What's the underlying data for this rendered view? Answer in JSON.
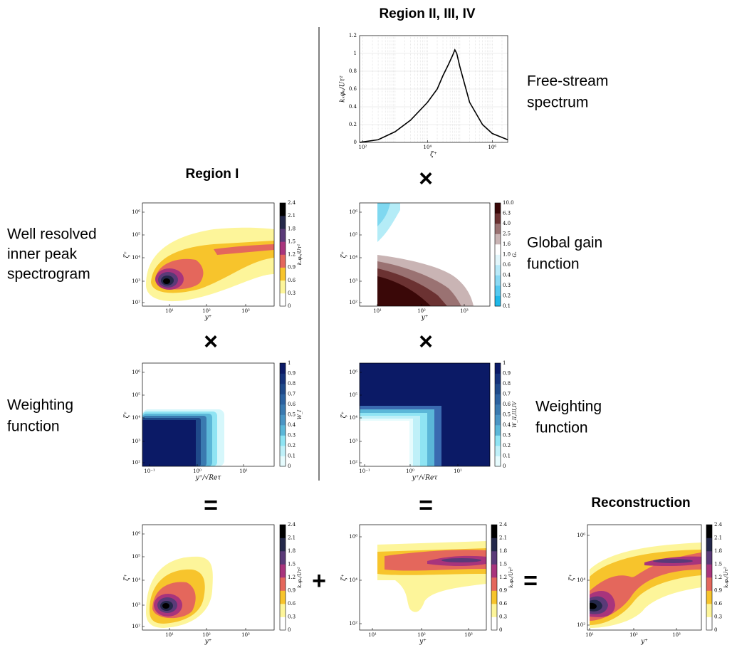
{
  "headings": {
    "region_234": "Region II, III, IV",
    "region_1": "Region I",
    "reconstruction": "Reconstruction"
  },
  "side_labels": {
    "spectrogram": [
      "Well resolved",
      "inner peak",
      "spectrogram"
    ],
    "free_stream": [
      "Free-stream",
      "spectrum"
    ],
    "gain": [
      "Global gain",
      "function"
    ],
    "weighting_1": [
      "Weighting",
      "function"
    ],
    "weighting_2": [
      "Weighting",
      "function"
    ]
  },
  "operators": [
    "×",
    "×",
    "×",
    "=",
    "=",
    "+",
    "="
  ],
  "spectrum": {
    "y_label": "kₓφᵤ/Uτ²",
    "x_label": "ζ⁺",
    "xlim": [
      80,
      3000000
    ],
    "ylim": [
      0,
      1.2
    ],
    "xticks": [
      {
        "value": 100,
        "label": "10²"
      },
      {
        "value": 10000,
        "label": "10⁴"
      },
      {
        "value": 1000000,
        "label": "10⁶"
      }
    ],
    "yticks": [
      0,
      0.2,
      0.4,
      0.6,
      0.8,
      1,
      1.2
    ],
    "x": [
      80,
      300,
      1000,
      3000,
      10000,
      20000,
      30000,
      45000,
      60000,
      70000,
      80000,
      100000,
      200000,
      500000,
      1000000,
      3000000
    ],
    "values": [
      0,
      0.03,
      0.12,
      0.25,
      0.45,
      0.6,
      0.75,
      0.88,
      0.98,
      1.04,
      1.0,
      0.85,
      0.45,
      0.2,
      0.1,
      0.03
    ]
  },
  "panels": {
    "spectrogram": {
      "y_label": "ζ⁺",
      "x_label": "y⁺",
      "yticks": [
        "10⁶",
        "10⁵",
        "10⁴",
        "10³",
        "10²"
      ],
      "xticks": [
        "10¹",
        "10²",
        "10³"
      ],
      "cbar_label": "kₓφᵤ/Uτ²",
      "cbar_ticks": [
        "0",
        "0.3",
        "0.6",
        "0.9",
        "1.2",
        "1.5",
        "1.8",
        "2.1",
        "2.4"
      ]
    },
    "gain": {
      "y_label": "ζ⁺",
      "x_label": "y⁺",
      "yticks": [
        "10⁶",
        "10⁵",
        "10⁴",
        "10³",
        "10²"
      ],
      "xticks": [
        "10¹",
        "10²",
        "10³"
      ],
      "cbar_label": "Gₓ",
      "cbar_ticks": [
        "0.1",
        "0.2",
        "0.3",
        "0.4",
        "0.6",
        "1.0",
        "1.6",
        "2.5",
        "4.0",
        "6.3",
        "10.0"
      ]
    },
    "weighting_1": {
      "y_label": "ζ⁺",
      "x_label": "y⁺/√Reτ",
      "yticks": [
        "10⁶",
        "10⁵",
        "10⁴",
        "10³",
        "10²"
      ],
      "xticks": [
        "10⁻¹",
        "10⁰",
        "10¹"
      ],
      "cbar_label": "W_I",
      "cbar_ticks": [
        "0",
        "0.1",
        "0.2",
        "0.3",
        "0.4",
        "0.5",
        "0.6",
        "0.7",
        "0.8",
        "0.9",
        "1"
      ]
    },
    "weighting_2": {
      "y_label": "ζ⁺",
      "x_label": "y⁺/√Reτ",
      "yticks": [
        "10⁶",
        "10⁵",
        "10⁴",
        "10³",
        "10²"
      ],
      "xticks": [
        "10⁻¹",
        "10⁰",
        "10¹"
      ],
      "cbar_label": "W_II,III,IV",
      "cbar_ticks": [
        "0",
        "0.1",
        "0.2",
        "0.3",
        "0.4",
        "0.5",
        "0.6",
        "0.7",
        "0.8",
        "0.9",
        "1"
      ]
    },
    "result_1": {
      "y_label": "ζ⁺",
      "x_label": "y⁺",
      "yticks": [
        "10⁶",
        "10⁵",
        "10⁴",
        "10³",
        "10²"
      ],
      "xticks": [
        "10¹",
        "10²",
        "10³"
      ],
      "cbar_label": "kₓφᵤ/Uτ²",
      "cbar_ticks": [
        "0",
        "0.3",
        "0.6",
        "0.9",
        "1.2",
        "1.5",
        "1.8",
        "2.1",
        "2.4"
      ]
    },
    "result_2": {
      "y_label": "ζ⁺",
      "x_label": "y⁺",
      "yticks": [
        "10⁶",
        "10⁴",
        "10²"
      ],
      "xticks": [
        "10¹",
        "10²",
        "10³"
      ],
      "cbar_label": "kₓφᵤ/Uτ²",
      "cbar_ticks": [
        "0",
        "0.3",
        "0.6",
        "0.9",
        "1.2",
        "1.5",
        "1.8",
        "2.1",
        "2.4"
      ]
    },
    "reconstruction": {
      "y_label": "ζ⁺",
      "x_label": "y⁺",
      "yticks": [
        "10⁶",
        "10⁴",
        "10²"
      ],
      "xticks": [
        "10¹",
        "10²",
        "10³"
      ],
      "cbar_label": "kₓφᵤ/Uτ²",
      "cbar_ticks": [
        "0",
        "0.3",
        "0.6",
        "0.9",
        "1.2",
        "1.5",
        "1.8",
        "2.1",
        "2.4"
      ]
    }
  }
}
